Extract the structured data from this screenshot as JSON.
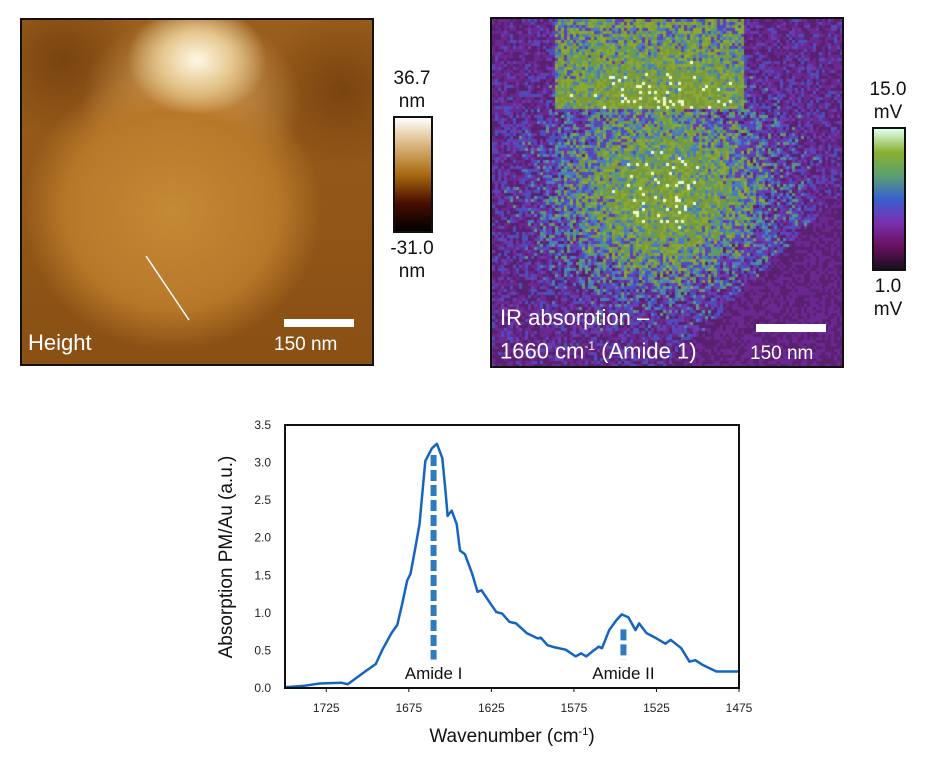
{
  "height_panel": {
    "label": "Height",
    "scale_bar": "150 nm",
    "colorbar": {
      "max_value": "36.7",
      "max_unit": "nm",
      "min_value": "-31.0",
      "min_unit": "nm",
      "colors": [
        "#000000",
        "#4a0e00",
        "#a86a10",
        "#d9b27a",
        "#ffffff"
      ]
    }
  },
  "ir_panel": {
    "label_line1": "IR absorption –",
    "label_line2_prefix": "1660 cm",
    "label_line2_sup": "-1",
    "label_line2_suffix": " (Amide 1)",
    "scale_bar": "150 nm",
    "colorbar": {
      "max_value": "15.0",
      "max_unit": "mV",
      "min_value": "1.0",
      "min_unit": "mV",
      "colors": [
        "#1a1020",
        "#6a1060",
        "#7a30b0",
        "#3a60d0",
        "#5aa070",
        "#8ab030",
        "#e0fff0"
      ]
    }
  },
  "chart_data": {
    "type": "line",
    "xlabel": "Wavenumber (cm",
    "xlabel_sup": "-1",
    "xlabel_end": ")",
    "ylabel": "Absorption PM/Au (a.u.)",
    "xlim": [
      1750,
      1475
    ],
    "ylim": [
      0,
      3.5
    ],
    "x_reversed": true,
    "xticks": [
      1725,
      1675,
      1625,
      1575,
      1525,
      1475
    ],
    "yticks": [
      "0.0",
      "0.5",
      "1.0",
      "1.5",
      "2.0",
      "2.5",
      "3.0",
      "3.5"
    ],
    "line_color": "#1565c0",
    "marker_color": "#2e7bbf",
    "series": [
      {
        "x": [
          1750,
          1738,
          1729,
          1716,
          1712,
          1701.5,
          1695,
          1691,
          1685.5,
          1682,
          1679,
          1676,
          1674,
          1671,
          1668.5,
          1665,
          1661,
          1658,
          1654.7,
          1652.6,
          1651.5,
          1649,
          1646,
          1644,
          1641,
          1636.6,
          1633.4,
          1631,
          1627,
          1622,
          1618.5,
          1614,
          1610,
          1603.6,
          1597,
          1595,
          1591,
          1586.6,
          1580,
          1574,
          1570.6,
          1567.5,
          1563,
          1560,
          1558,
          1553.6,
          1549.4,
          1546,
          1542,
          1537.7,
          1535.5,
          1531,
          1525,
          1519.6,
          1516.4,
          1510,
          1505,
          1501.5,
          1497.2,
          1488.7,
          1475
        ],
        "y": [
          0.01,
          0.03,
          0.06,
          0.07,
          0.05,
          0.22,
          0.32,
          0.51,
          0.73,
          0.84,
          1.12,
          1.43,
          1.52,
          1.87,
          2.18,
          3.02,
          3.19,
          3.25,
          3.06,
          2.58,
          2.29,
          2.36,
          2.18,
          1.83,
          1.78,
          1.52,
          1.28,
          1.3,
          1.17,
          1.01,
          0.99,
          0.88,
          0.86,
          0.73,
          0.66,
          0.67,
          0.57,
          0.54,
          0.51,
          0.42,
          0.46,
          0.42,
          0.5,
          0.55,
          0.53,
          0.77,
          0.9,
          0.98,
          0.94,
          0.77,
          0.86,
          0.73,
          0.66,
          0.59,
          0.64,
          0.53,
          0.35,
          0.37,
          0.31,
          0.22,
          0.22
        ]
      }
    ],
    "annotations": [
      {
        "text": "Amide I",
        "x": 1660,
        "y_top": 3.1,
        "y_bottom": 0.38
      },
      {
        "text": "Amide II",
        "x": 1545,
        "y_top": 0.78,
        "y_bottom": 0.38
      }
    ],
    "grid": false
  }
}
